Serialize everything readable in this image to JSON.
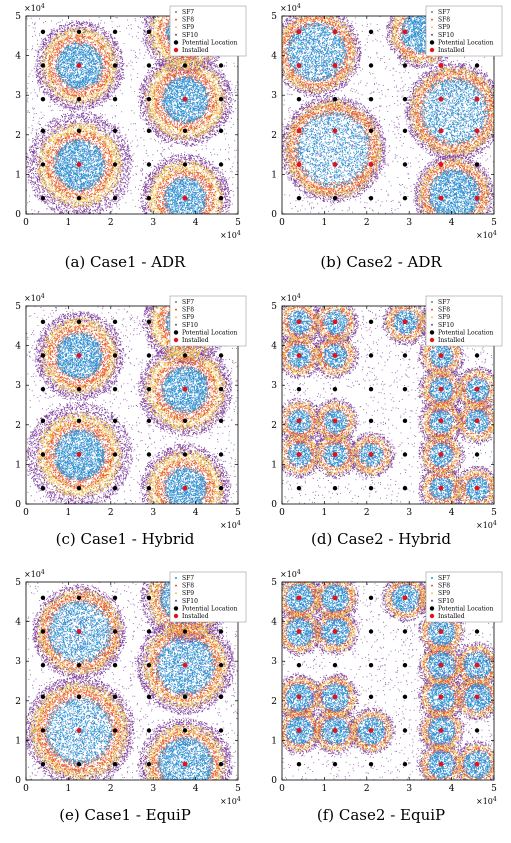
{
  "chart_data": [
    {
      "id": "a",
      "type": "scatter",
      "caption": "(a) Case1 - ADR",
      "x_range": [
        0,
        50000
      ],
      "y_range": [
        0,
        50000
      ],
      "xticks": [
        "0",
        "1",
        "2",
        "3",
        "4",
        "5"
      ],
      "yticks": [
        "0",
        "1",
        "2",
        "3",
        "4",
        "5"
      ],
      "x_multiplier": "×10",
      "x_exponent": "4",
      "y_multiplier": "×10",
      "y_exponent": "4",
      "legend": [
        "SF7",
        "SF8",
        "SF9",
        "SF10",
        "Potential Location",
        "Installed"
      ],
      "installed": [
        [
          12500,
          12500
        ],
        [
          12500,
          37500
        ],
        [
          37500,
          4000
        ],
        [
          37500,
          29000
        ],
        [
          37500,
          46000
        ]
      ],
      "clusters": [
        {
          "x": 12500,
          "y": 37500,
          "r": [
            5500,
            7500,
            9000,
            10500
          ]
        },
        {
          "x": 12500,
          "y": 12500,
          "r": [
            6000,
            8000,
            10000,
            12500
          ]
        },
        {
          "x": 37500,
          "y": 29000,
          "r": [
            5500,
            7500,
            9500,
            11000
          ]
        },
        {
          "x": 37500,
          "y": 4000,
          "r": [
            5000,
            7000,
            9000,
            10500
          ]
        },
        {
          "x": 37500,
          "y": 46000,
          "r": [
            4500,
            6500,
            8500,
            10000
          ]
        }
      ]
    },
    {
      "id": "b",
      "type": "scatter",
      "caption": "(b) Case2 - ADR",
      "x_range": [
        0,
        50000
      ],
      "y_range": [
        0,
        50000
      ],
      "xticks": [
        "0",
        "1",
        "2",
        "3",
        "4",
        "5"
      ],
      "yticks": [
        "0",
        "1",
        "2",
        "3",
        "4",
        "5"
      ],
      "x_multiplier": "×10",
      "x_exponent": "4",
      "y_multiplier": "×10",
      "y_exponent": "4",
      "legend": [
        "SF7",
        "SF8",
        "SF9",
        "SF10",
        "Potential Location",
        "Installed"
      ],
      "installed": [
        [
          4000,
          12500
        ],
        [
          12500,
          12500
        ],
        [
          21000,
          12500
        ],
        [
          4000,
          21000
        ],
        [
          12500,
          21000
        ],
        [
          4000,
          37500
        ],
        [
          12500,
          37500
        ],
        [
          4000,
          46000
        ],
        [
          12500,
          46000
        ],
        [
          29000,
          46000
        ],
        [
          37500,
          46000
        ],
        [
          37500,
          37500
        ],
        [
          37500,
          29000
        ],
        [
          46000,
          29000
        ],
        [
          37500,
          21000
        ],
        [
          46000,
          21000
        ],
        [
          37500,
          12500
        ],
        [
          37500,
          4000
        ],
        [
          46000,
          4000
        ]
      ],
      "clusters": [
        {
          "x": 8000,
          "y": 41000,
          "r": [
            7000,
            8500,
            9500,
            10500
          ]
        },
        {
          "x": 12000,
          "y": 16500,
          "r": [
            9000,
            10500,
            11500,
            12500
          ]
        },
        {
          "x": 40500,
          "y": 26000,
          "r": [
            8000,
            9500,
            10500,
            11500
          ]
        },
        {
          "x": 40500,
          "y": 5000,
          "r": [
            6000,
            7500,
            8500,
            9500
          ]
        },
        {
          "x": 33000,
          "y": 46000,
          "r": [
            5000,
            6500,
            7500,
            8500
          ]
        }
      ]
    },
    {
      "id": "c",
      "type": "scatter",
      "caption": "(c) Case1 - Hybrid",
      "x_range": [
        0,
        50000
      ],
      "y_range": [
        0,
        50000
      ],
      "xticks": [
        "0",
        "1",
        "2",
        "3",
        "4",
        "5"
      ],
      "yticks": [
        "0",
        "1",
        "2",
        "3",
        "4",
        "5"
      ],
      "x_multiplier": "×10",
      "x_exponent": "4",
      "y_multiplier": "×10",
      "y_exponent": "4",
      "legend": [
        "SF7",
        "SF8",
        "SF9",
        "SF10",
        "Potential Location",
        "Installed"
      ],
      "installed": [
        [
          12500,
          12500
        ],
        [
          12500,
          37500
        ],
        [
          37500,
          4000
        ],
        [
          37500,
          29000
        ],
        [
          37500,
          46000
        ]
      ],
      "clusters": [
        {
          "x": 12500,
          "y": 37500,
          "r": [
            5500,
            7500,
            9000,
            10500
          ]
        },
        {
          "x": 12500,
          "y": 12500,
          "r": [
            6000,
            8000,
            10000,
            12500
          ]
        },
        {
          "x": 37500,
          "y": 29000,
          "r": [
            5500,
            7500,
            9500,
            11000
          ]
        },
        {
          "x": 37500,
          "y": 4000,
          "r": [
            5000,
            7000,
            9000,
            10500
          ]
        },
        {
          "x": 37500,
          "y": 46000,
          "r": [
            4500,
            6500,
            8500,
            10000
          ]
        }
      ]
    },
    {
      "id": "d",
      "type": "scatter",
      "caption": "(d) Case2 - Hybrid",
      "x_range": [
        0,
        50000
      ],
      "y_range": [
        0,
        50000
      ],
      "xticks": [
        "0",
        "1",
        "2",
        "3",
        "4",
        "5"
      ],
      "yticks": [
        "0",
        "1",
        "2",
        "3",
        "4",
        "5"
      ],
      "x_multiplier": "×10",
      "x_exponent": "4",
      "y_multiplier": "×10",
      "y_exponent": "4",
      "legend": [
        "SF7",
        "SF8",
        "SF9",
        "SF10",
        "Potential Location",
        "Installed"
      ],
      "installed": [
        [
          4000,
          12500
        ],
        [
          12500,
          12500
        ],
        [
          21000,
          12500
        ],
        [
          4000,
          21000
        ],
        [
          12500,
          21000
        ],
        [
          4000,
          37500
        ],
        [
          12500,
          37500
        ],
        [
          4000,
          46000
        ],
        [
          12500,
          46000
        ],
        [
          29000,
          46000
        ],
        [
          37500,
          46000
        ],
        [
          37500,
          37500
        ],
        [
          37500,
          29000
        ],
        [
          46000,
          29000
        ],
        [
          37500,
          21000
        ],
        [
          46000,
          21000
        ],
        [
          37500,
          12500
        ],
        [
          37500,
          4000
        ],
        [
          46000,
          4000
        ]
      ],
      "clusters": [
        {
          "x": 4000,
          "y": 12500,
          "r": [
            2800,
            3800,
            4600,
            5400
          ]
        },
        {
          "x": 12500,
          "y": 12500,
          "r": [
            2800,
            3800,
            4600,
            5400
          ]
        },
        {
          "x": 21000,
          "y": 12500,
          "r": [
            2800,
            3800,
            4600,
            5400
          ]
        },
        {
          "x": 4000,
          "y": 21000,
          "r": [
            2800,
            3800,
            4600,
            5400
          ]
        },
        {
          "x": 12500,
          "y": 21000,
          "r": [
            2800,
            3800,
            4600,
            5400
          ]
        },
        {
          "x": 4000,
          "y": 37500,
          "r": [
            2800,
            3800,
            4600,
            5400
          ]
        },
        {
          "x": 12500,
          "y": 37500,
          "r": [
            2800,
            3800,
            4600,
            5400
          ]
        },
        {
          "x": 4000,
          "y": 46000,
          "r": [
            2800,
            3800,
            4600,
            5400
          ]
        },
        {
          "x": 12500,
          "y": 46000,
          "r": [
            2800,
            3800,
            4600,
            5400
          ]
        },
        {
          "x": 29000,
          "y": 46000,
          "r": [
            2800,
            3800,
            4600,
            5400
          ]
        },
        {
          "x": 37500,
          "y": 46000,
          "r": [
            2800,
            3800,
            4600,
            5400
          ]
        },
        {
          "x": 37500,
          "y": 37500,
          "r": [
            2800,
            3800,
            4600,
            5400
          ]
        },
        {
          "x": 37500,
          "y": 29000,
          "r": [
            2800,
            3800,
            4600,
            5400
          ]
        },
        {
          "x": 46000,
          "y": 29000,
          "r": [
            2800,
            3800,
            4600,
            5400
          ]
        },
        {
          "x": 37500,
          "y": 21000,
          "r": [
            2800,
            3800,
            4600,
            5400
          ]
        },
        {
          "x": 46000,
          "y": 21000,
          "r": [
            2800,
            3800,
            4600,
            5400
          ]
        },
        {
          "x": 37500,
          "y": 12500,
          "r": [
            2800,
            3800,
            4600,
            5400
          ]
        },
        {
          "x": 37500,
          "y": 4000,
          "r": [
            2800,
            3800,
            4600,
            5400
          ]
        },
        {
          "x": 46000,
          "y": 4000,
          "r": [
            2800,
            3800,
            4600,
            5400
          ]
        }
      ]
    },
    {
      "id": "e",
      "type": "scatter",
      "caption": "(e) Case1 - EquiP",
      "x_range": [
        0,
        50000
      ],
      "y_range": [
        0,
        50000
      ],
      "xticks": [
        "0",
        "1",
        "2",
        "3",
        "4",
        "5"
      ],
      "yticks": [
        "0",
        "1",
        "2",
        "3",
        "4",
        "5"
      ],
      "x_multiplier": "×10",
      "x_exponent": "4",
      "y_multiplier": "×10",
      "y_exponent": "4",
      "legend": [
        "SF7",
        "SF8",
        "SF9",
        "SF10",
        "Potential Location",
        "Installed"
      ],
      "installed": [
        [
          12500,
          12500
        ],
        [
          12500,
          37500
        ],
        [
          37500,
          4000
        ],
        [
          37500,
          29000
        ],
        [
          37500,
          46000
        ]
      ],
      "clusters": [
        {
          "x": 12500,
          "y": 37500,
          "r": [
            7500,
            9000,
            10000,
            11000
          ]
        },
        {
          "x": 12500,
          "y": 12500,
          "r": [
            8000,
            10000,
            11500,
            13000
          ]
        },
        {
          "x": 37500,
          "y": 29000,
          "r": [
            7000,
            8500,
            10000,
            11500
          ]
        },
        {
          "x": 37500,
          "y": 4000,
          "r": [
            6500,
            8000,
            9500,
            11000
          ]
        },
        {
          "x": 37500,
          "y": 46000,
          "r": [
            6000,
            7500,
            9000,
            10500
          ]
        }
      ]
    },
    {
      "id": "f",
      "type": "scatter",
      "caption": "(f) Case2 - EquiP",
      "x_range": [
        0,
        50000
      ],
      "y_range": [
        0,
        50000
      ],
      "xticks": [
        "0",
        "1",
        "2",
        "3",
        "4",
        "5"
      ],
      "yticks": [
        "0",
        "1",
        "2",
        "3",
        "4",
        "5"
      ],
      "x_multiplier": "×10",
      "x_exponent": "4",
      "y_multiplier": "×10",
      "y_exponent": "4",
      "legend": [
        "SF7",
        "SF8",
        "SF9",
        "SF10",
        "Potential Location",
        "Installed"
      ],
      "installed": [
        [
          4000,
          12500
        ],
        [
          12500,
          12500
        ],
        [
          21000,
          12500
        ],
        [
          4000,
          21000
        ],
        [
          12500,
          21000
        ],
        [
          4000,
          37500
        ],
        [
          12500,
          37500
        ],
        [
          4000,
          46000
        ],
        [
          12500,
          46000
        ],
        [
          29000,
          46000
        ],
        [
          37500,
          46000
        ],
        [
          37500,
          37500
        ],
        [
          37500,
          29000
        ],
        [
          46000,
          29000
        ],
        [
          37500,
          21000
        ],
        [
          46000,
          21000
        ],
        [
          37500,
          12500
        ],
        [
          37500,
          4000
        ],
        [
          46000,
          4000
        ]
      ],
      "clusters": [
        {
          "x": 4000,
          "y": 12500,
          "r": [
            3300,
            4100,
            4800,
            5500
          ]
        },
        {
          "x": 12500,
          "y": 12500,
          "r": [
            3300,
            4100,
            4800,
            5500
          ]
        },
        {
          "x": 21000,
          "y": 12500,
          "r": [
            3300,
            4100,
            4800,
            5500
          ]
        },
        {
          "x": 4000,
          "y": 21000,
          "r": [
            3300,
            4100,
            4800,
            5500
          ]
        },
        {
          "x": 12500,
          "y": 21000,
          "r": [
            3300,
            4100,
            4800,
            5500
          ]
        },
        {
          "x": 4000,
          "y": 37500,
          "r": [
            3300,
            4100,
            4800,
            5500
          ]
        },
        {
          "x": 12500,
          "y": 37500,
          "r": [
            3300,
            4100,
            4800,
            5500
          ]
        },
        {
          "x": 4000,
          "y": 46000,
          "r": [
            3300,
            4100,
            4800,
            5500
          ]
        },
        {
          "x": 12500,
          "y": 46000,
          "r": [
            3300,
            4100,
            4800,
            5500
          ]
        },
        {
          "x": 29000,
          "y": 46000,
          "r": [
            3300,
            4100,
            4800,
            5500
          ]
        },
        {
          "x": 37500,
          "y": 46000,
          "r": [
            3300,
            4100,
            4800,
            5500
          ]
        },
        {
          "x": 37500,
          "y": 37500,
          "r": [
            3300,
            4100,
            4800,
            5500
          ]
        },
        {
          "x": 37500,
          "y": 29000,
          "r": [
            3300,
            4100,
            4800,
            5500
          ]
        },
        {
          "x": 46000,
          "y": 29000,
          "r": [
            3300,
            4100,
            4800,
            5500
          ]
        },
        {
          "x": 37500,
          "y": 21000,
          "r": [
            3300,
            4100,
            4800,
            5500
          ]
        },
        {
          "x": 46000,
          "y": 21000,
          "r": [
            3300,
            4100,
            4800,
            5500
          ]
        },
        {
          "x": 37500,
          "y": 12500,
          "r": [
            3300,
            4100,
            4800,
            5500
          ]
        },
        {
          "x": 37500,
          "y": 4000,
          "r": [
            3300,
            4100,
            4800,
            5500
          ]
        },
        {
          "x": 46000,
          "y": 4000,
          "r": [
            3300,
            4100,
            4800,
            5500
          ]
        }
      ]
    }
  ],
  "potential_locations": [
    [
      4000,
      4000
    ],
    [
      12500,
      4000
    ],
    [
      21000,
      4000
    ],
    [
      29000,
      4000
    ],
    [
      37500,
      4000
    ],
    [
      46000,
      4000
    ],
    [
      4000,
      12500
    ],
    [
      12500,
      12500
    ],
    [
      21000,
      12500
    ],
    [
      29000,
      12500
    ],
    [
      37500,
      12500
    ],
    [
      46000,
      12500
    ],
    [
      4000,
      21000
    ],
    [
      12500,
      21000
    ],
    [
      21000,
      21000
    ],
    [
      29000,
      21000
    ],
    [
      37500,
      21000
    ],
    [
      46000,
      21000
    ],
    [
      4000,
      29000
    ],
    [
      12500,
      29000
    ],
    [
      21000,
      29000
    ],
    [
      29000,
      29000
    ],
    [
      37500,
      29000
    ],
    [
      46000,
      29000
    ],
    [
      4000,
      37500
    ],
    [
      12500,
      37500
    ],
    [
      21000,
      37500
    ],
    [
      29000,
      37500
    ],
    [
      37500,
      37500
    ],
    [
      46000,
      37500
    ],
    [
      4000,
      46000
    ],
    [
      12500,
      46000
    ],
    [
      21000,
      46000
    ],
    [
      29000,
      46000
    ],
    [
      37500,
      46000
    ],
    [
      46000,
      46000
    ]
  ],
  "colors": {
    "sf7": "#2b8fd1",
    "sf8": "#e8572b",
    "sf9": "#f0c24a",
    "sf10": "#7d3b9c",
    "potential": "#000000",
    "installed": "#e0141c",
    "axis": "#000000"
  }
}
